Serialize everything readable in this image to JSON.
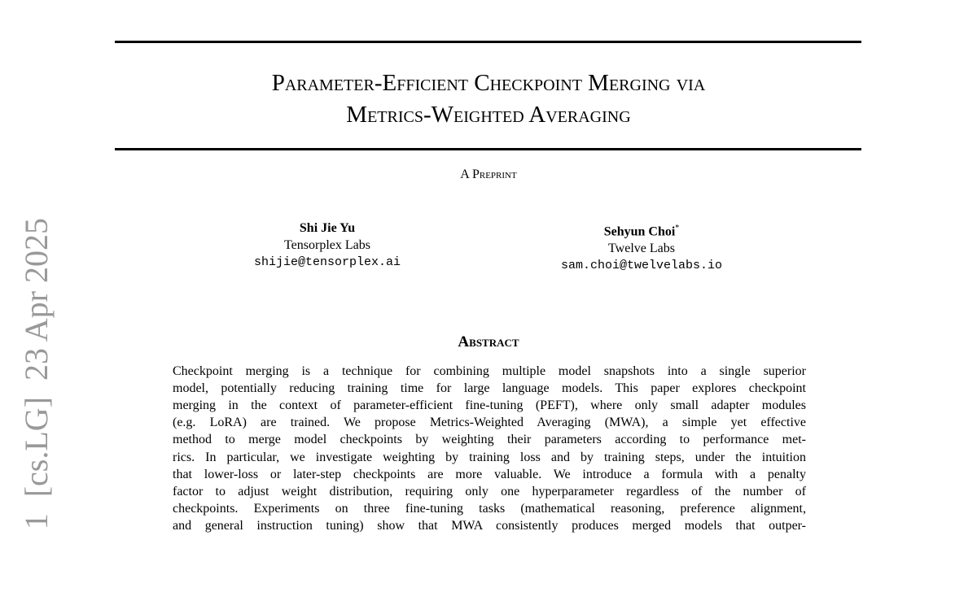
{
  "stamp": "1  [cs.LG]  23 Apr 2025",
  "header": {
    "title": [
      "Parameter-Efficient Checkpoint Merging via",
      "Metrics-Weighted Averaging"
    ],
    "label": "A Preprint"
  },
  "authors": [
    {
      "name": "Shi Jie Yu",
      "affiliation": "Tensorplex Labs",
      "email": "shijie@tensorplex.ai"
    },
    {
      "name": "Sehyun Choi",
      "marker": "*",
      "affiliation": "Twelve Labs",
      "email": "sam.choi@twelvelabs.io"
    }
  ],
  "abstract": {
    "heading": "Abstract",
    "lines": [
      "Checkpoint merging is a technique for combining multiple model snapshots into a single superior",
      "model, potentially reducing training time for large language models. This paper explores checkpoint",
      "merging in the context of parameter-efficient fine-tuning (PEFT), where only small adapter modules",
      "(e.g. LoRA) are trained. We propose Metrics-Weighted Averaging (MWA), a simple yet effective",
      "method to merge model checkpoints by weighting their parameters according to performance met-",
      "rics. In particular, we investigate weighting by training loss and by training steps, under the intuition",
      "that lower-loss or later-step checkpoints are more valuable. We introduce a formula with a penalty",
      "factor to adjust weight distribution, requiring only one hyperparameter regardless of the number of",
      "checkpoints. Experiments on three fine-tuning tasks (mathematical reasoning, preference alignment,",
      "and general instruction tuning) show that MWA consistently produces merged models that outper-"
    ]
  }
}
